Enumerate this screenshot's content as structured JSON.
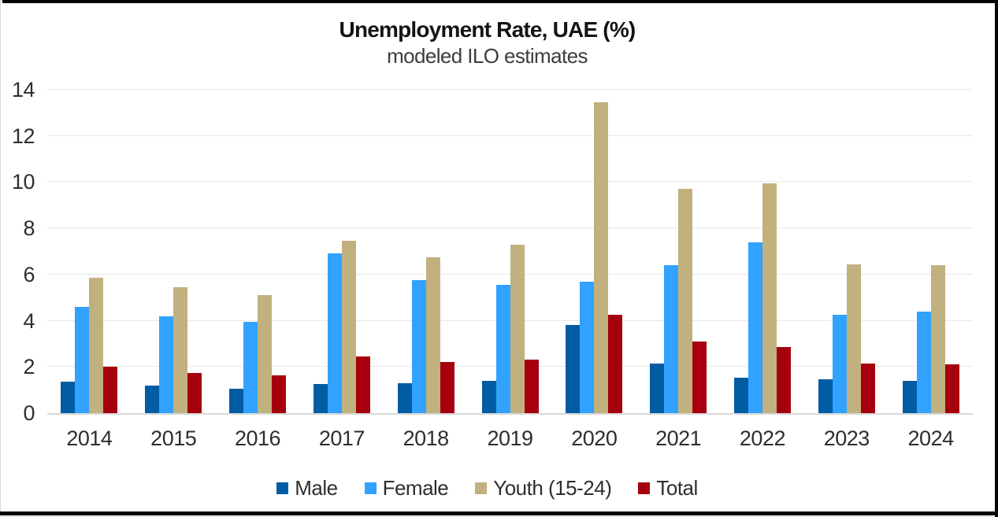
{
  "chart": {
    "title": "Unemployment Rate, UAE (%)",
    "subtitle": "modeled ILO estimates"
  },
  "chart_data": {
    "type": "bar",
    "title": "Unemployment Rate, UAE (%)",
    "subtitle": "modeled ILO estimates",
    "categories": [
      "2014",
      "2015",
      "2016",
      "2017",
      "2018",
      "2019",
      "2020",
      "2021",
      "2022",
      "2023",
      "2024"
    ],
    "series": [
      {
        "name": "Male",
        "color": "#005CA3",
        "values": [
          1.35,
          1.2,
          1.05,
          1.25,
          1.3,
          1.4,
          3.8,
          2.15,
          1.55,
          1.45,
          1.4
        ]
      },
      {
        "name": "Female",
        "color": "#31A2FF",
        "values": [
          4.6,
          4.2,
          3.95,
          6.9,
          5.75,
          5.55,
          5.7,
          6.4,
          7.4,
          4.25,
          4.4
        ]
      },
      {
        "name": "Youth (15-24)",
        "color": "#C0B17E",
        "values": [
          5.85,
          5.45,
          5.1,
          7.45,
          6.75,
          7.3,
          13.45,
          9.7,
          9.95,
          6.45,
          6.4
        ]
      },
      {
        "name": "Total",
        "color": "#A6000E",
        "values": [
          2.0,
          1.75,
          1.65,
          2.45,
          2.2,
          2.3,
          4.25,
          3.1,
          2.85,
          2.15,
          2.1
        ]
      }
    ],
    "xlabel": "",
    "ylabel": "",
    "ylim": [
      0,
      14
    ],
    "yticks": [
      0,
      2,
      4,
      6,
      8,
      10,
      12,
      14
    ],
    "grid": true,
    "legend_position": "bottom",
    "colors": {
      "gridline": "#e7e7e7",
      "axis_line": "#d8d8d8",
      "title_text": "#141414",
      "subtitle_text": "#3d3d3d",
      "tick_text": "#2e2e2e",
      "frame_border": "#d9d9d9",
      "window_edge": "#020202"
    }
  }
}
